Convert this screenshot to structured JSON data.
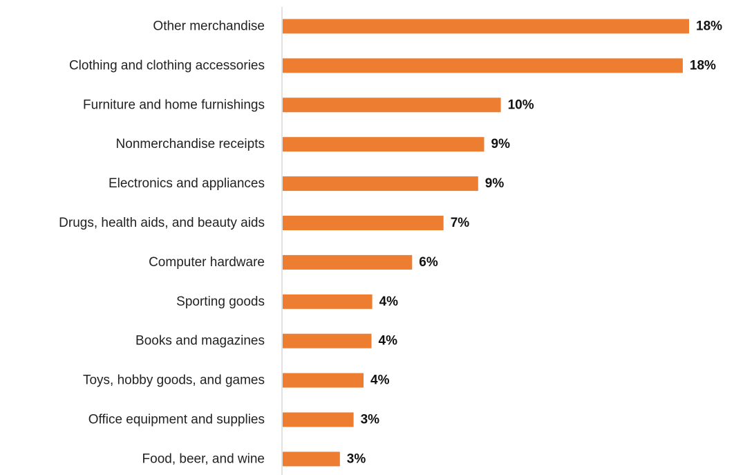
{
  "chart_data": {
    "type": "bar",
    "orientation": "horizontal",
    "categories": [
      "Other merchandise",
      "Clothing and clothing accessories",
      "Furniture and home furnishings",
      "Nonmerchandise receipts",
      "Electronics and appliances",
      "Drugs, health aids, and beauty aids",
      "Computer hardware",
      "Sporting goods",
      "Books and magazines",
      "Toys, hobby goods, and games",
      "Office equipment and supplies",
      "Food, beer, and wine"
    ],
    "values": [
      18,
      18,
      10,
      9,
      9,
      7,
      6,
      4,
      4,
      4,
      3,
      3
    ],
    "value_labels": [
      "18%",
      "18%",
      "10%",
      "9%",
      "9%",
      "7%",
      "6%",
      "4%",
      "4%",
      "4%",
      "3%",
      "3%"
    ],
    "bar_fraction_of_max": [
      1.0,
      0.9846,
      0.5368,
      0.4958,
      0.4809,
      0.3957,
      0.3186,
      0.2204,
      0.2185,
      0.1989,
      0.1745,
      0.1408
    ],
    "title": "",
    "xlabel": "",
    "ylabel": "",
    "grid": false,
    "legend": "none",
    "bar_color": "#ED7D31"
  }
}
